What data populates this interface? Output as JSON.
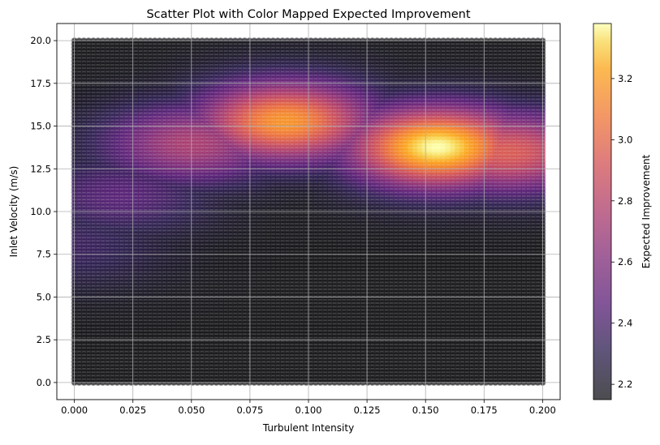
{
  "chart_data": {
    "type": "scatter",
    "title": "Scatter Plot with Color Mapped Expected Improvement",
    "xlabel": "Turbulent Intensity",
    "ylabel": "Inlet Velocity (m/s)",
    "xlim": [
      -0.0075,
      0.2075
    ],
    "ylim": [
      -1.0,
      21.0
    ],
    "x_ticks": [
      0.0,
      0.025,
      0.05,
      0.075,
      0.1,
      0.125,
      0.15,
      0.175,
      0.2
    ],
    "x_tick_labels": [
      "0.000",
      "0.025",
      "0.050",
      "0.075",
      "0.100",
      "0.125",
      "0.150",
      "0.175",
      "0.200"
    ],
    "y_ticks": [
      0.0,
      2.5,
      5.0,
      7.5,
      10.0,
      12.5,
      15.0,
      17.5,
      20.0
    ],
    "y_tick_labels": [
      "0.0",
      "2.5",
      "5.0",
      "7.5",
      "10.0",
      "12.5",
      "15.0",
      "17.5",
      "20.0"
    ],
    "grid": true,
    "points": {
      "x_range": [
        0.0,
        0.2
      ],
      "y_range": [
        0.0,
        20.0
      ],
      "grid_size": [
        100,
        100
      ],
      "alpha": 0.7,
      "value_baseline": 2.15
    },
    "hotspots": [
      {
        "x": 0.155,
        "y": 13.8,
        "peak": 3.38
      },
      {
        "x": 0.09,
        "y": 15.3,
        "peak": 3.17
      },
      {
        "x": 0.05,
        "y": 14.0,
        "peak": 2.75
      },
      {
        "x": 0.02,
        "y": 11.0,
        "peak": 2.45
      },
      {
        "x": 0.0,
        "y": 8.0,
        "peak": 2.35
      },
      {
        "x": 0.185,
        "y": 13.5,
        "peak": 2.95
      }
    ],
    "colorbar": {
      "label": "Expected Improvement",
      "min": 2.15,
      "max": 3.38,
      "ticks": [
        2.2,
        2.4,
        2.6,
        2.8,
        3.0,
        3.2
      ],
      "tick_labels": [
        "2.2",
        "2.4",
        "2.6",
        "2.8",
        "3.0",
        "3.2"
      ],
      "colormap": "inferno",
      "alpha": 0.7
    }
  }
}
